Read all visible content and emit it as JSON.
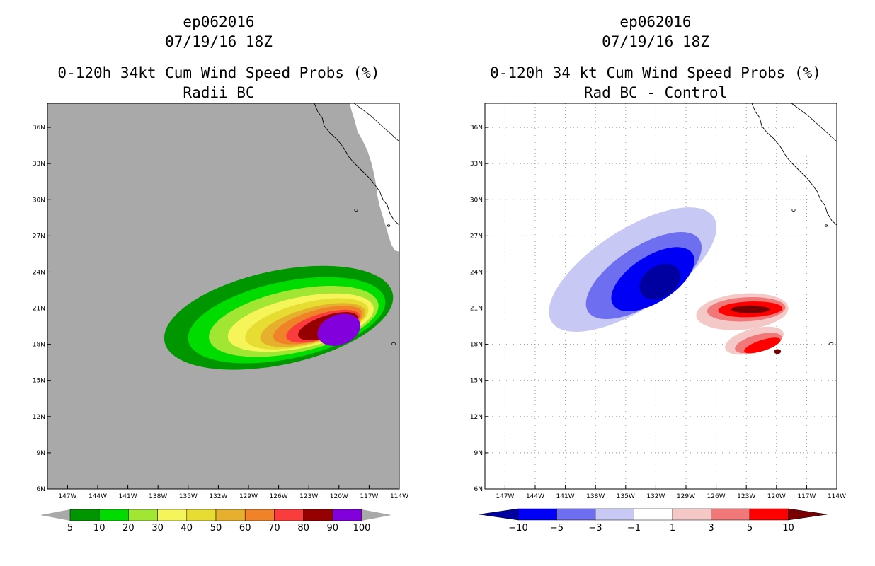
{
  "chart_data": [
    {
      "type": "heatmap",
      "title_lines": [
        "ep062016",
        "07/19/16 18Z",
        "0-120h 34kt Cum Wind Speed Probs (%)",
        "Radii BC"
      ],
      "x_ticks": [
        "147W",
        "144W",
        "141W",
        "138W",
        "135W",
        "132W",
        "129W",
        "126W",
        "123W",
        "120W",
        "117W",
        "114W"
      ],
      "y_ticks": [
        "6N",
        "9N",
        "12N",
        "15N",
        "18N",
        "21N",
        "24N",
        "27N",
        "30N",
        "33N",
        "36N"
      ],
      "xlim": [
        -149,
        -114
      ],
      "ylim": [
        6,
        38
      ],
      "background_color": "#a9a9a9",
      "grid": false,
      "colorbar": {
        "labels": [
          "5",
          "10",
          "20",
          "30",
          "40",
          "50",
          "60",
          "70",
          "80",
          "90",
          "100"
        ],
        "colors": [
          "#009600",
          "#00dc00",
          "#a0e632",
          "#f5f55a",
          "#e6dc32",
          "#e6af2d",
          "#f08228",
          "#fa3c3c",
          "#960000",
          "#8200dc"
        ],
        "end_color": "#a9a9a9"
      },
      "contours": [
        {
          "level": 5,
          "center": [
            -126.0,
            20.2
          ],
          "rx": 11.6,
          "ry": 3.9,
          "angle": -12
        },
        {
          "level": 10,
          "center": [
            -125.2,
            20.0
          ],
          "rx": 10.0,
          "ry": 3.2,
          "angle": -12
        },
        {
          "level": 20,
          "center": [
            -124.5,
            19.9
          ],
          "rx": 8.6,
          "ry": 2.6,
          "angle": -12
        },
        {
          "level": 30,
          "center": [
            -123.8,
            19.8
          ],
          "rx": 7.4,
          "ry": 2.1,
          "angle": -12
        },
        {
          "level": 40,
          "center": [
            -123.2,
            19.7
          ],
          "rx": 6.3,
          "ry": 1.75,
          "angle": -14
        },
        {
          "level": 50,
          "center": [
            -122.6,
            19.6
          ],
          "rx": 5.4,
          "ry": 1.45,
          "angle": -15
        },
        {
          "level": 60,
          "center": [
            -122.1,
            19.6
          ],
          "rx": 4.6,
          "ry": 1.25,
          "angle": -16
        },
        {
          "level": 70,
          "center": [
            -121.6,
            19.5
          ],
          "rx": 3.8,
          "ry": 1.05,
          "angle": -17
        },
        {
          "level": 80,
          "center": [
            -121.1,
            19.5
          ],
          "rx": 3.1,
          "ry": 0.9,
          "angle": -18
        },
        {
          "level": 90,
          "center": [
            -120.0,
            19.2
          ],
          "rx": 2.2,
          "ry": 1.25,
          "angle": -20
        }
      ]
    },
    {
      "type": "heatmap",
      "title_lines": [
        "ep062016",
        "07/19/16 18Z",
        "0-120h 34 kt Cum Wind Speed Probs (%)",
        "Rad BC - Control"
      ],
      "x_ticks": [
        "147W",
        "144W",
        "141W",
        "138W",
        "135W",
        "132W",
        "129W",
        "126W",
        "123W",
        "120W",
        "117W",
        "114W"
      ],
      "y_ticks": [
        "6N",
        "9N",
        "12N",
        "15N",
        "18N",
        "21N",
        "24N",
        "27N",
        "30N",
        "33N",
        "36N"
      ],
      "xlim": [
        -149,
        -114
      ],
      "ylim": [
        6,
        38
      ],
      "background_color": "#ffffff",
      "grid": true,
      "colorbar": {
        "labels": [
          "-10",
          "-5",
          "-3",
          "-1",
          "1",
          "3",
          "5",
          "10"
        ],
        "colors": [
          "#0000a0",
          "#0000f5",
          "#6e6ef0",
          "#c8c8f5",
          "#ffffff",
          "#f5c8c8",
          "#f07878",
          "#ff0000",
          "#780000"
        ]
      },
      "contours": [
        {
          "level": -1,
          "center": [
            -134.3,
            24.2
          ],
          "rx": 9.6,
          "ry": 3.3,
          "angle": -33
        },
        {
          "level": -3,
          "center": [
            -133.2,
            23.7
          ],
          "rx": 6.6,
          "ry": 2.4,
          "angle": -33
        },
        {
          "level": -5,
          "center": [
            -132.3,
            23.4
          ],
          "rx": 4.7,
          "ry": 1.9,
          "angle": -33
        },
        {
          "level": -10,
          "center": [
            -131.6,
            23.2
          ],
          "rx": 2.2,
          "ry": 1.3,
          "angle": -33
        },
        {
          "level": 1,
          "center": [
            -123.4,
            20.7
          ],
          "rx": 4.6,
          "ry": 1.5,
          "angle": -5
        },
        {
          "level": 1,
          "center": [
            -122.2,
            18.3
          ],
          "rx": 3.0,
          "ry": 1.0,
          "angle": -15
        },
        {
          "level": 3,
          "center": [
            -123.0,
            20.9
          ],
          "rx": 3.9,
          "ry": 1.0,
          "angle": -3
        },
        {
          "level": 3,
          "center": [
            -121.8,
            18.1
          ],
          "rx": 2.4,
          "ry": 0.7,
          "angle": -15
        },
        {
          "level": 5,
          "center": [
            -122.6,
            20.9
          ],
          "rx": 3.2,
          "ry": 0.65,
          "angle": -2
        },
        {
          "level": 5,
          "center": [
            -121.4,
            17.9
          ],
          "rx": 1.9,
          "ry": 0.45,
          "angle": -18
        },
        {
          "level": 10,
          "center": [
            -122.6,
            20.9
          ],
          "rx": 1.9,
          "ry": 0.32,
          "angle": 0
        },
        {
          "level": 10,
          "center": [
            -119.9,
            17.4
          ],
          "rx": 0.35,
          "ry": 0.2,
          "angle": 0
        }
      ]
    }
  ]
}
